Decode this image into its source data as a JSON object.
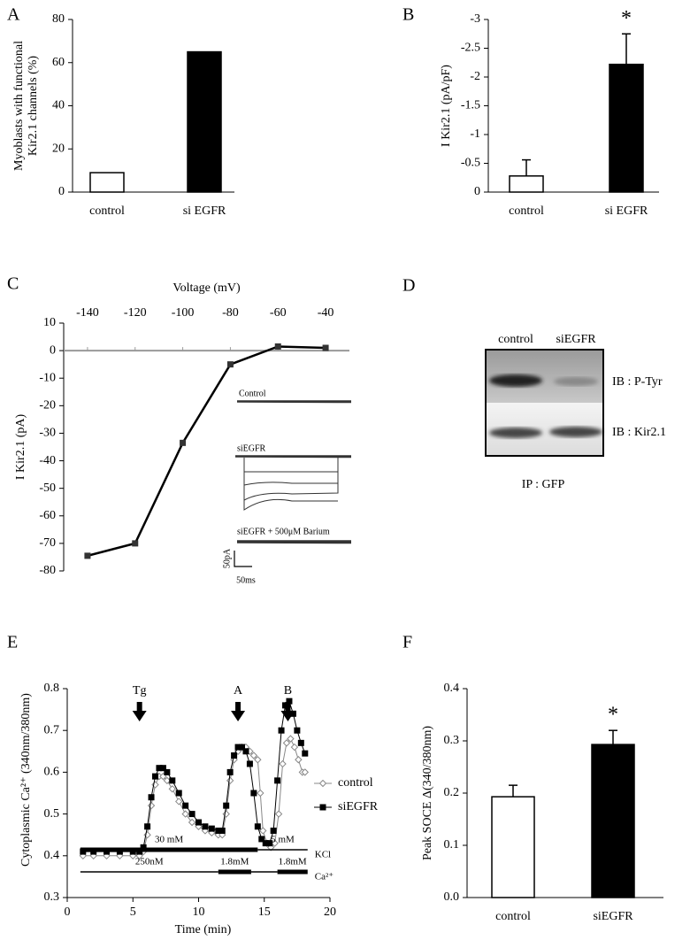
{
  "chart_data": [
    {
      "panel": "A",
      "type": "bar",
      "ylabel": [
        "Myoblasts with functional",
        "Kir2.1 channels (%)"
      ],
      "categories": [
        "control",
        "si EGFR"
      ],
      "values": [
        9,
        65
      ],
      "colors": [
        "#ffffff",
        "#000000"
      ],
      "ylim": [
        0,
        80
      ],
      "yticks": [
        0,
        20,
        40,
        60,
        80
      ]
    },
    {
      "panel": "B",
      "type": "bar",
      "ylabel": "I Kir2.1 (pA/pF)",
      "categories": [
        "control",
        "si EGFR"
      ],
      "values": [
        -0.28,
        -2.22
      ],
      "errors": [
        0.28,
        0.53
      ],
      "colors": [
        "#ffffff",
        "#000000"
      ],
      "ylim": [
        0,
        -3
      ],
      "yticks": [
        0,
        -0.5,
        -1,
        -1.5,
        -2,
        -2.5,
        -3
      ],
      "annotations": [
        {
          "text": "*",
          "category": 1
        }
      ]
    },
    {
      "panel": "C",
      "type": "line",
      "xlabel": "Voltage (mV)",
      "ylabel": "I Kir2.1 (pA)",
      "x": [
        -140,
        -120,
        -100,
        -80,
        -60,
        -40
      ],
      "values": [
        -74.5,
        -70,
        -33.5,
        -5,
        1.5,
        1
      ],
      "color": "#000000",
      "xlim": [
        -150,
        -30
      ],
      "xticks": [
        -140,
        -120,
        -100,
        -80,
        -60,
        -40
      ],
      "ylim": [
        -80,
        10
      ],
      "yticks": [
        -80,
        -70,
        -60,
        -50,
        -40,
        -30,
        -20,
        -10,
        0,
        10
      ],
      "inset": {
        "traces": [
          "Control",
          "siEGFR",
          "siEGFR + 500μM Barium"
        ],
        "scale_bar": [
          "50pA",
          "50ms"
        ]
      }
    },
    {
      "panel": "E",
      "type": "line",
      "xlabel": "Time (min)",
      "ylabel": "Cytoplasmic Ca²⁺ (340nm/380nm)",
      "series": [
        {
          "name": "control",
          "color": "#888888",
          "marker": "diamond",
          "x": [
            1.2,
            2,
            3,
            4,
            5,
            5.5,
            5.8,
            6.1,
            6.4,
            6.7,
            7,
            7.3,
            7.6,
            8,
            8.5,
            9,
            9.5,
            10,
            10.5,
            11,
            11.5,
            11.8,
            12.1,
            12.4,
            12.7,
            13,
            13.3,
            13.6,
            13.9,
            14.2,
            14.5,
            14.7,
            14.9,
            15.2,
            15.5,
            15.8,
            16.1,
            16.4,
            16.7,
            17,
            17.3,
            17.6,
            17.9,
            18.1
          ],
          "values": [
            0.4,
            0.4,
            0.4,
            0.4,
            0.4,
            0.4,
            0.41,
            0.45,
            0.52,
            0.57,
            0.59,
            0.59,
            0.58,
            0.56,
            0.53,
            0.5,
            0.48,
            0.47,
            0.46,
            0.455,
            0.45,
            0.45,
            0.5,
            0.58,
            0.63,
            0.65,
            0.66,
            0.66,
            0.65,
            0.64,
            0.63,
            0.55,
            0.46,
            0.43,
            0.42,
            0.43,
            0.5,
            0.62,
            0.67,
            0.68,
            0.66,
            0.63,
            0.6,
            0.6
          ]
        },
        {
          "name": "siEGFR",
          "color": "#000000",
          "marker": "square",
          "x": [
            1.2,
            2,
            3,
            4,
            5,
            5.5,
            5.8,
            6.1,
            6.4,
            6.7,
            7,
            7.3,
            7.6,
            8,
            8.5,
            9,
            9.5,
            10,
            10.5,
            11,
            11.5,
            11.8,
            12.1,
            12.4,
            12.7,
            13,
            13.3,
            13.6,
            13.9,
            14.2,
            14.5,
            14.8,
            15.1,
            15.4,
            15.7,
            16,
            16.3,
            16.6,
            16.9,
            17.2,
            17.5,
            17.8,
            18.1
          ],
          "values": [
            0.41,
            0.41,
            0.41,
            0.41,
            0.41,
            0.41,
            0.42,
            0.47,
            0.54,
            0.59,
            0.61,
            0.61,
            0.6,
            0.58,
            0.55,
            0.52,
            0.5,
            0.48,
            0.47,
            0.465,
            0.46,
            0.46,
            0.52,
            0.6,
            0.64,
            0.66,
            0.66,
            0.65,
            0.62,
            0.55,
            0.47,
            0.44,
            0.43,
            0.43,
            0.46,
            0.58,
            0.7,
            0.76,
            0.77,
            0.74,
            0.7,
            0.67,
            0.645
          ]
        }
      ],
      "xlim": [
        0,
        20
      ],
      "xticks": [
        0,
        5,
        10,
        15,
        20
      ],
      "ylim": [
        0.3,
        0.8
      ],
      "yticks": [
        0.3,
        0.4,
        0.5,
        0.6,
        0.7,
        0.8
      ],
      "legend": "right",
      "arrows": [
        {
          "text": "Tg",
          "x": 5.5
        },
        {
          "text": "A",
          "x": 13
        },
        {
          "text": "B",
          "x": 16.8
        }
      ],
      "protocol": [
        {
          "label": "KCl",
          "segments": [
            {
              "start": 1,
              "end": 14.5,
              "text": "30 mM",
              "thick": true
            },
            {
              "start": 14.5,
              "end": 18.3,
              "text": "5 mM",
              "thick": false
            }
          ]
        },
        {
          "label": "Ca²⁺",
          "segments": [
            {
              "start": 1,
              "end": 11.5,
              "text": "250nM",
              "thick": false
            },
            {
              "start": 11.5,
              "end": 14,
              "text": "1.8mM",
              "thick": true
            },
            {
              "start": 14,
              "end": 16,
              "thick": false
            },
            {
              "start": 16,
              "end": 18.3,
              "text": "1.8mM",
              "thick": true
            }
          ]
        }
      ]
    },
    {
      "panel": "F",
      "type": "bar",
      "ylabel": "Peak SOCE Δ(340/380nm)",
      "categories": [
        "control",
        "siEGFR"
      ],
      "values": [
        0.193,
        0.293
      ],
      "errors": [
        0.022,
        0.027
      ],
      "colors": [
        "#ffffff",
        "#000000"
      ],
      "ylim": [
        0,
        0.4
      ],
      "yticks": [
        {
          "value": 0,
          "label": "0.0"
        },
        0.1,
        0.2,
        0.3,
        0.4
      ],
      "annotations": [
        {
          "text": "*",
          "category": 1
        }
      ]
    }
  ],
  "blot": {
    "panel": "D",
    "lanes": [
      "control",
      "siEGFR"
    ],
    "rows": [
      "IB : P-Tyr",
      "IB : Kir2.1"
    ],
    "footer": "IP : GFP"
  }
}
